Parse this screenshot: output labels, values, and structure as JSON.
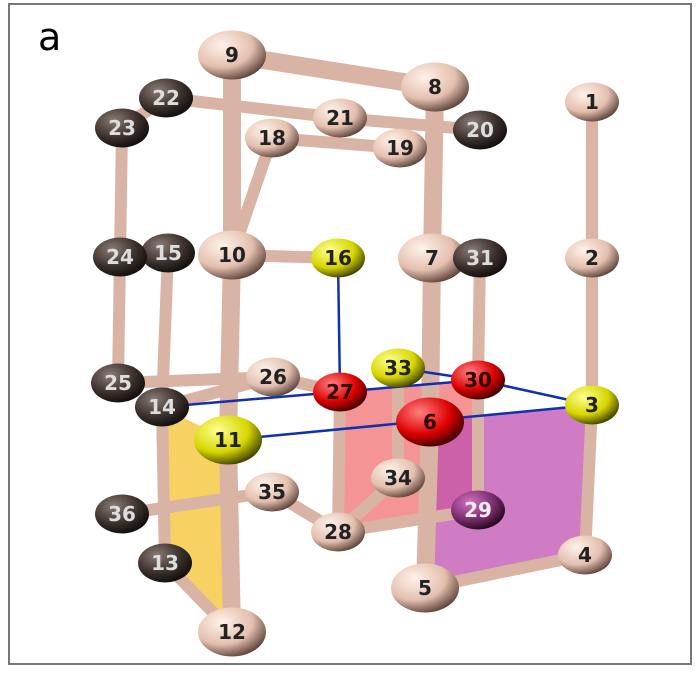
{
  "panel_label": "a",
  "nodes": [
    {
      "label": "1"
    },
    {
      "label": "2"
    },
    {
      "label": "3"
    },
    {
      "label": "4"
    },
    {
      "label": "5"
    },
    {
      "label": "6"
    },
    {
      "label": "7"
    },
    {
      "label": "8"
    },
    {
      "label": "9"
    },
    {
      "label": "10"
    },
    {
      "label": "11"
    },
    {
      "label": "12"
    },
    {
      "label": "13"
    },
    {
      "label": "14"
    },
    {
      "label": "15"
    },
    {
      "label": "16"
    },
    {
      "label": "18"
    },
    {
      "label": "19"
    },
    {
      "label": "20"
    },
    {
      "label": "21"
    },
    {
      "label": "22"
    },
    {
      "label": "23"
    },
    {
      "label": "24"
    },
    {
      "label": "25"
    },
    {
      "label": "26"
    },
    {
      "label": "27"
    },
    {
      "label": "28"
    },
    {
      "label": "29"
    },
    {
      "label": "30"
    },
    {
      "label": "31"
    },
    {
      "label": "33"
    },
    {
      "label": "34"
    },
    {
      "label": "35"
    },
    {
      "label": "36"
    }
  ]
}
